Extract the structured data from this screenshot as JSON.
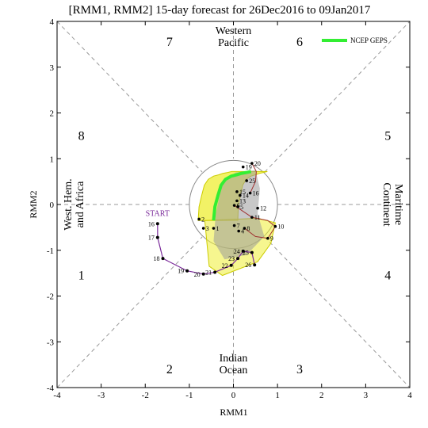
{
  "chart_data": {
    "type": "line",
    "title": "[RMM1, RMM2] 15-day forecast for 26Dec2016 to 09Jan2017",
    "xlabel": "RMM1",
    "ylabel": "RMM2",
    "xlim": [
      -4,
      4
    ],
    "ylim": [
      -4,
      4
    ],
    "x_ticks": [
      "-4",
      "-3",
      "-2",
      "-1",
      "0",
      "1",
      "2",
      "3",
      "4"
    ],
    "y_ticks": [
      "-4",
      "-3",
      "-2",
      "-1",
      "0",
      "1",
      "2",
      "3",
      "4"
    ],
    "grid": false,
    "legend_position": "top-right",
    "legend": [
      {
        "name": "NCEP GEPS",
        "color": "#33ee33"
      }
    ],
    "phases": [
      {
        "label": "1",
        "x": -3.45,
        "y": -1.55
      },
      {
        "label": "2",
        "x": -1.45,
        "y": -3.6
      },
      {
        "label": "3",
        "x": 1.5,
        "y": -3.6
      },
      {
        "label": "4",
        "x": 3.5,
        "y": -1.55
      },
      {
        "label": "5",
        "x": 3.5,
        "y": 1.5
      },
      {
        "label": "6",
        "x": 1.5,
        "y": 3.55
      },
      {
        "label": "7",
        "x": -1.45,
        "y": 3.55
      },
      {
        "label": "8",
        "x": -3.45,
        "y": 1.5
      }
    ],
    "regions": [
      {
        "lines": [
          "Western",
          "Pacific"
        ],
        "x": 0,
        "y": 3.6,
        "rotate": 0
      },
      {
        "lines": [
          "Indian",
          "Ocean"
        ],
        "x": 0,
        "y": -3.55,
        "rotate": 0
      },
      {
        "lines": [
          "West. Hem.",
          "and Africa"
        ],
        "x": -3.55,
        "y": 0,
        "rotate": -90
      },
      {
        "lines": [
          "Maritime",
          "Continent"
        ],
        "x": 3.55,
        "y": 0,
        "rotate": 90
      }
    ],
    "start_label": {
      "text": "START",
      "x": -1.72,
      "y": -0.25
    },
    "observed_series": {
      "name": "",
      "color": "#7a2a9a",
      "points": [
        {
          "day": "16",
          "x": -1.72,
          "y": -0.42
        },
        {
          "day": "17",
          "x": -1.72,
          "y": -0.72
        },
        {
          "day": "18",
          "x": -1.6,
          "y": -1.18
        },
        {
          "day": "19",
          "x": -1.05,
          "y": -1.45
        },
        {
          "day": "20",
          "x": -0.68,
          "y": -1.52
        },
        {
          "day": "21",
          "x": -0.42,
          "y": -1.48
        },
        {
          "day": "22",
          "x": -0.05,
          "y": -1.33
        },
        {
          "day": "23",
          "x": 0.1,
          "y": -1.18
        },
        {
          "day": "24",
          "x": 0.22,
          "y": -1.02
        },
        {
          "day": "25",
          "x": 0.42,
          "y": -1.05
        },
        {
          "day": "26",
          "x": 0.48,
          "y": -1.32
        }
      ]
    },
    "ensemble_mean": {
      "name": "NCEP GEPS",
      "color": "#33ee33",
      "points": [
        {
          "x": -0.45,
          "y": -0.35
        },
        {
          "x": -0.42,
          "y": -0.05
        },
        {
          "x": -0.35,
          "y": 0.2
        },
        {
          "x": -0.28,
          "y": 0.42
        },
        {
          "x": -0.18,
          "y": 0.55
        },
        {
          "x": -0.05,
          "y": 0.62
        },
        {
          "x": 0.08,
          "y": 0.65
        },
        {
          "x": 0.18,
          "y": 0.68
        },
        {
          "x": 0.3,
          "y": 0.7
        },
        {
          "x": 0.4,
          "y": 0.72
        }
      ]
    },
    "forecast_labels": [
      {
        "day": "1",
        "x": -0.45,
        "y": -0.52
      },
      {
        "day": "2",
        "x": -0.78,
        "y": -0.32
      },
      {
        "day": "3",
        "x": -0.68,
        "y": -0.52
      },
      {
        "day": "4",
        "x": 0.12,
        "y": -0.58
      },
      {
        "day": "5",
        "x": 0.1,
        "y": -0.05
      },
      {
        "day": "6",
        "x": 0.02,
        "y": -0.02
      },
      {
        "day": "7",
        "x": 0.02,
        "y": -0.46
      },
      {
        "day": "8",
        "x": 0.25,
        "y": -0.52
      },
      {
        "day": "9",
        "x": 0.78,
        "y": -0.74
      },
      {
        "day": "10",
        "x": 0.95,
        "y": -0.48
      },
      {
        "day": "11",
        "x": 0.42,
        "y": -0.28
      },
      {
        "day": "12",
        "x": 0.55,
        "y": -0.08
      },
      {
        "day": "13",
        "x": 0.08,
        "y": 0.08
      },
      {
        "day": "14",
        "x": 0.15,
        "y": 0.2
      },
      {
        "day": "15",
        "x": 0.08,
        "y": 0.28
      },
      {
        "day": "16",
        "x": 0.38,
        "y": 0.25
      },
      {
        "day": "19",
        "x": 0.22,
        "y": 0.82
      },
      {
        "day": "20",
        "x": 0.42,
        "y": 0.9
      },
      {
        "day": "25",
        "x": 0.3,
        "y": 0.52
      }
    ]
  }
}
